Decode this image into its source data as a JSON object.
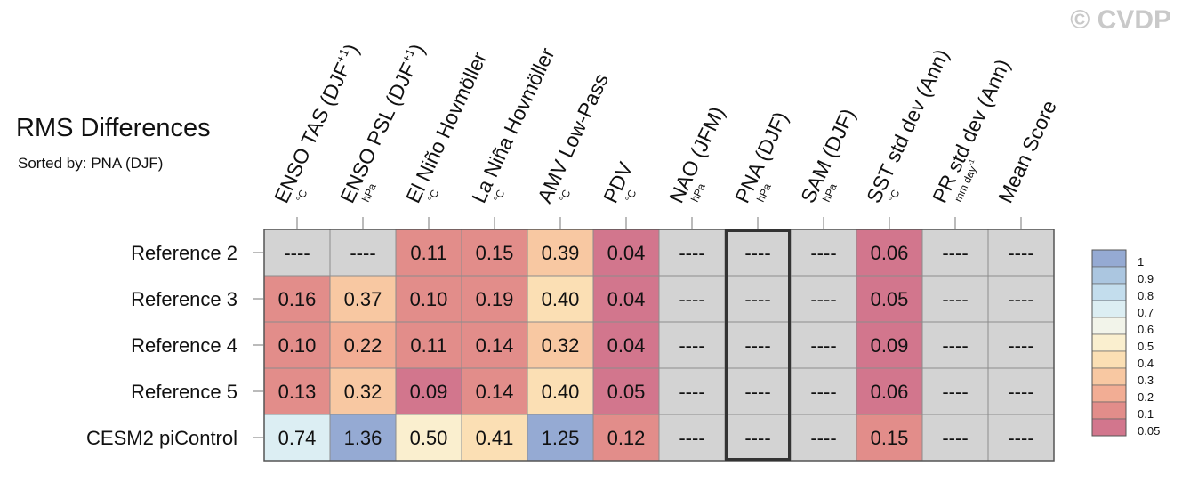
{
  "title": "RMS Differences",
  "subtitle": "Sorted by: PNA (DJF)",
  "watermark": "© CVDP",
  "chart_data": {
    "type": "heatmap",
    "columns": [
      {
        "name": "ENSO TAS (DJF+1)",
        "main": "ENSO TAS (DJF",
        "sup": "+1",
        "tail": ")",
        "unit": "°C"
      },
      {
        "name": "ENSO PSL (DJF+1)",
        "main": "ENSO PSL (DJF",
        "sup": "+1",
        "tail": ")",
        "unit": "hPa"
      },
      {
        "name": "El Niño Hovmöller",
        "main": "El Niño Hovmöller",
        "sup": "",
        "tail": "",
        "unit": "°C"
      },
      {
        "name": "La Niña Hovmöller",
        "main": "La Niña Hovmöller",
        "sup": "",
        "tail": "",
        "unit": "°C"
      },
      {
        "name": "AMV Low-Pass",
        "main": "AMV Low-Pass",
        "sup": "",
        "tail": "",
        "unit": "°C"
      },
      {
        "name": "PDV",
        "main": "PDV",
        "sup": "",
        "tail": "",
        "unit": "°C"
      },
      {
        "name": "NAO (JFM)",
        "main": "NAO (JFM)",
        "sup": "",
        "tail": "",
        "unit": "hPa"
      },
      {
        "name": "PNA (DJF)",
        "main": "PNA (DJF)",
        "sup": "",
        "tail": "",
        "unit": "hPa"
      },
      {
        "name": "SAM (DJF)",
        "main": "SAM (DJF)",
        "sup": "",
        "tail": "",
        "unit": "hPa"
      },
      {
        "name": "SST std dev (Ann)",
        "main": "SST std dev (Ann)",
        "sup": "",
        "tail": "",
        "unit": "°C"
      },
      {
        "name": "PR std dev (Ann)",
        "main": "PR std dev (Ann)",
        "sup": "",
        "tail": "",
        "unit": "mm day",
        "unit_sup": "-1"
      },
      {
        "name": "Mean Score",
        "main": "Mean Score",
        "sup": "",
        "tail": "",
        "unit": ""
      }
    ],
    "rows": [
      "Reference 2",
      "Reference 3",
      "Reference 4",
      "Reference 5",
      "CESM2 piControl"
    ],
    "values": [
      [
        "----",
        "----",
        "0.11",
        "0.15",
        "0.39",
        "0.04",
        "----",
        "----",
        "----",
        "0.06",
        "----",
        "----"
      ],
      [
        "0.16",
        "0.37",
        "0.10",
        "0.19",
        "0.40",
        "0.04",
        "----",
        "----",
        "----",
        "0.05",
        "----",
        "----"
      ],
      [
        "0.10",
        "0.22",
        "0.11",
        "0.14",
        "0.32",
        "0.04",
        "----",
        "----",
        "----",
        "0.09",
        "----",
        "----"
      ],
      [
        "0.13",
        "0.32",
        "0.09",
        "0.14",
        "0.40",
        "0.05",
        "----",
        "----",
        "----",
        "0.06",
        "----",
        "----"
      ],
      [
        "0.74",
        "1.36",
        "0.50",
        "0.41",
        "1.25",
        "0.12",
        "----",
        "----",
        "----",
        "0.15",
        "----",
        "----"
      ]
    ],
    "missing_label": "----",
    "missing_color": "#d3d3d3",
    "highlight_column": "PNA (DJF)",
    "colorbar": {
      "labels": [
        "1",
        "0.9",
        "0.8",
        "0.7",
        "0.6",
        "0.5",
        "0.4",
        "0.3",
        "0.2",
        "0.1",
        "0.05"
      ],
      "colors": [
        "#95aad3",
        "#abc6e0",
        "#c3dded",
        "#dceef3",
        "#f2f4ea",
        "#faefcf",
        "#fbdfb4",
        "#f8c8a2",
        "#f2ad94",
        "#e28d8a",
        "#d2768d"
      ]
    }
  }
}
